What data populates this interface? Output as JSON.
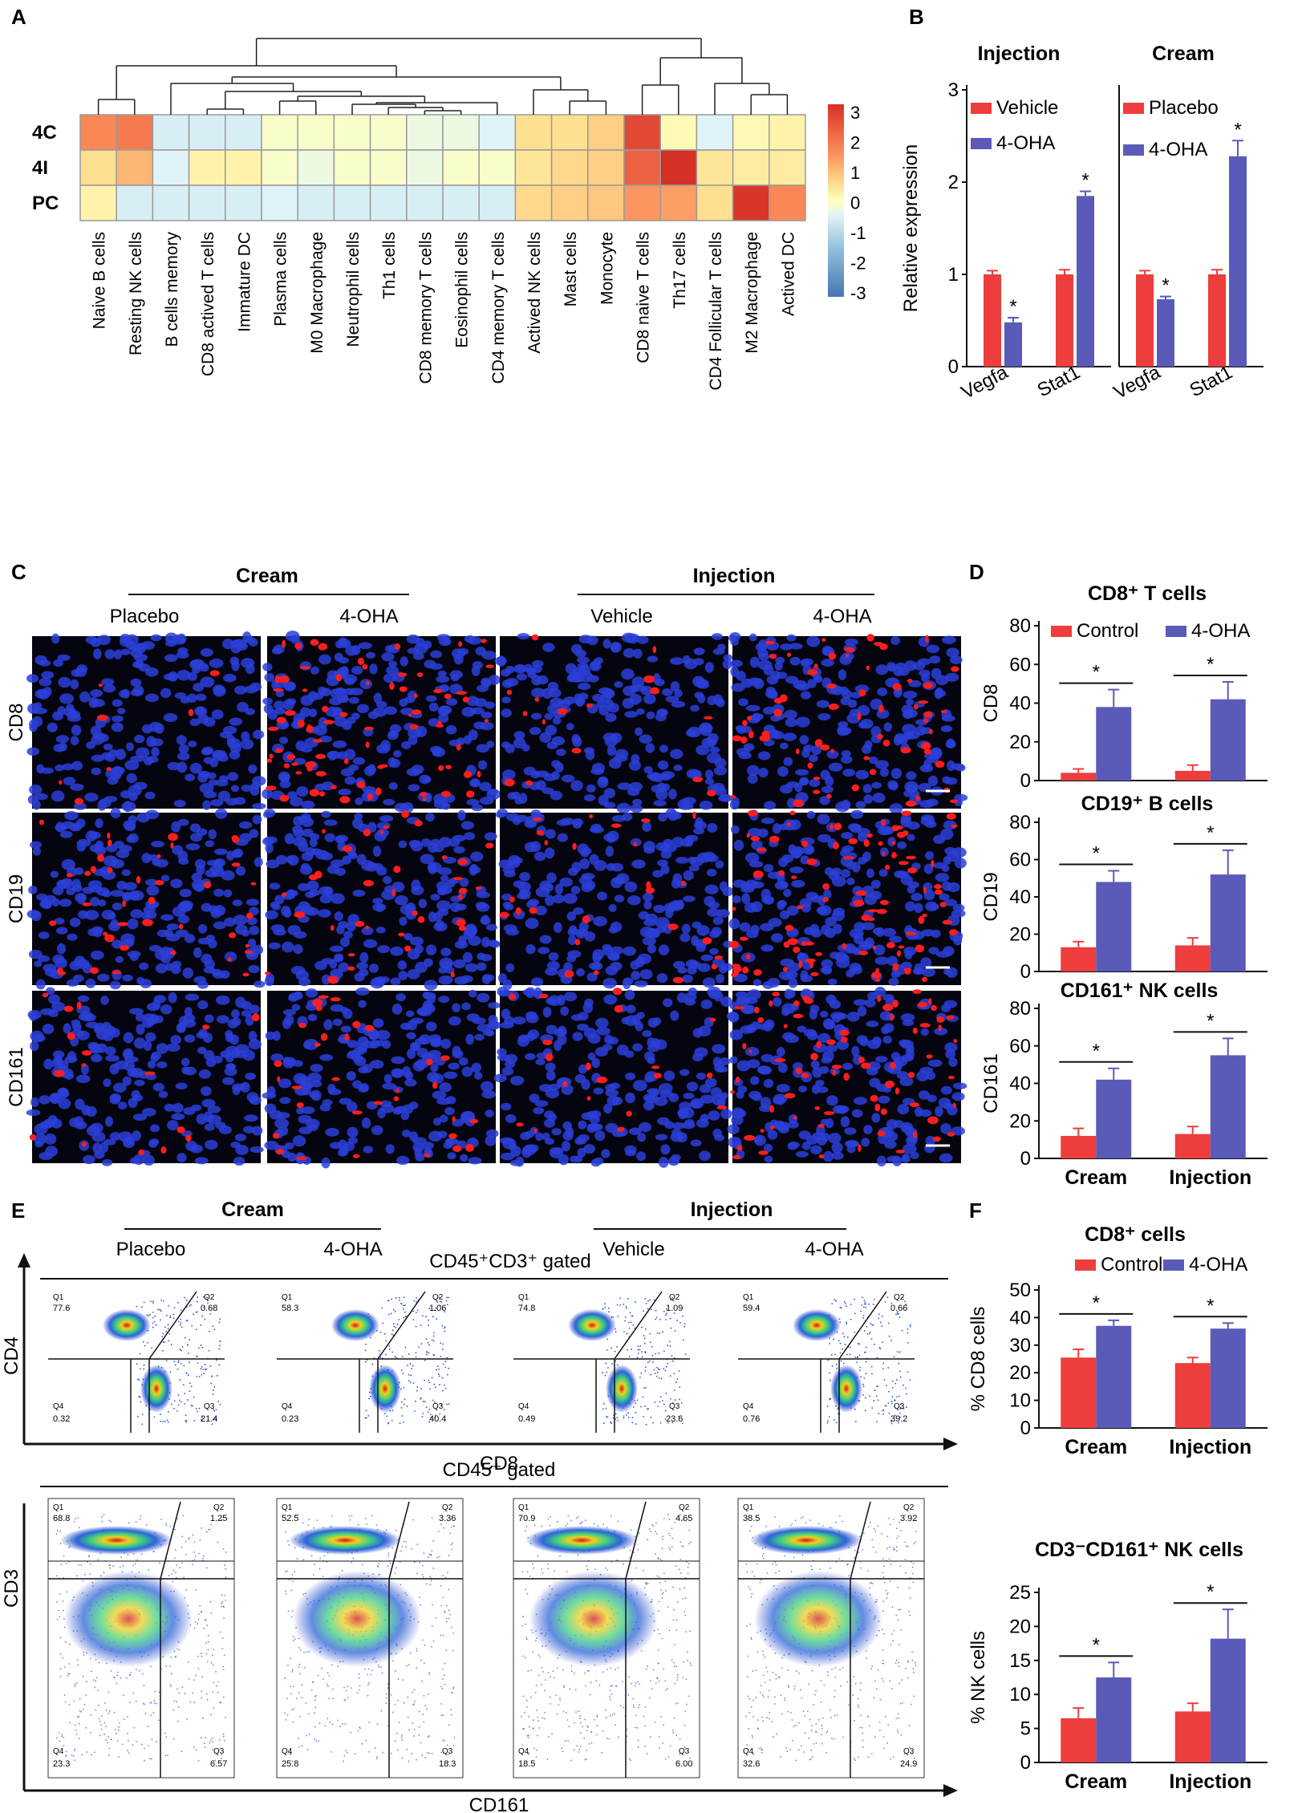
{
  "panels": {
    "a": "A",
    "b": "B",
    "c": "C",
    "d": "D",
    "e": "E",
    "f": "F"
  },
  "colors": {
    "red": "#ee3d3d",
    "blue": "#5a5bb8",
    "micro_bg": "#050510",
    "nuclei": "#2b3fd8",
    "stain": "#ff1e1e"
  },
  "heatmap": {
    "rows": [
      "4C",
      "4I",
      "PC"
    ],
    "columns": [
      "Naive B cells",
      "Resting NK cells",
      "B cells memory",
      "CD8 actived T cells",
      "Immature DC",
      "Plasma cells",
      "M0 Macrophage",
      "Neutrophil cells",
      "Th1 cells",
      "CD8 memory T cells",
      "Eosinophil cells",
      "CD4 memory T cells",
      "Actived NK cells",
      "Mast cells",
      "Monocyte",
      "CD8 naive T cells",
      "Th17 cells",
      "CD4 Follicular T cells",
      "M2 Macrophage",
      "Actived DC"
    ],
    "values": [
      [
        1.6,
        1.8,
        -0.6,
        -0.6,
        -0.6,
        -0.1,
        -0.1,
        -0.1,
        -0.1,
        -0.3,
        -0.3,
        -0.5,
        0.5,
        0.5,
        0.7,
        2.6,
        0.1,
        -0.5,
        0.1,
        0.2
      ],
      [
        0.5,
        1.0,
        -0.5,
        0.2,
        0.2,
        -0.1,
        -0.3,
        -0.1,
        -0.1,
        -0.3,
        -0.1,
        -0.1,
        0.4,
        0.6,
        0.7,
        2.2,
        3.4,
        0.4,
        0.3,
        0.3
      ],
      [
        0.2,
        -0.6,
        -0.6,
        -0.6,
        -0.6,
        -0.5,
        -0.6,
        -0.6,
        -0.6,
        -0.6,
        -0.6,
        -0.6,
        0.6,
        0.7,
        0.8,
        1.4,
        1.3,
        0.5,
        2.9,
        1.6
      ]
    ],
    "scale_ticks": [
      "3",
      "2",
      "1",
      "0",
      "-1",
      "-2",
      "-3"
    ]
  },
  "chart_data": [
    {
      "id": "B-injection",
      "type": "bar",
      "title": "Injection",
      "ylabel": "Relative expression",
      "ylim": [
        0,
        3
      ],
      "yticks": [
        "0",
        "1",
        "2",
        "3"
      ],
      "categories": [
        "Vegfa",
        "Stat1"
      ],
      "series": [
        {
          "name": "Vehicle",
          "values": [
            1.0,
            1.0
          ],
          "errors": [
            0.04,
            0.05
          ]
        },
        {
          "name": "4-OHA",
          "values": [
            0.48,
            1.85
          ],
          "errors": [
            0.05,
            0.05
          ]
        }
      ],
      "significance": [
        "*",
        "*"
      ]
    },
    {
      "id": "B-cream",
      "type": "bar",
      "title": "Cream",
      "ylabel": "",
      "ylim": [
        0,
        3
      ],
      "categories": [
        "Vegfa",
        "Stat1"
      ],
      "series": [
        {
          "name": "Placebo",
          "values": [
            1.0,
            1.0
          ],
          "errors": [
            0.04,
            0.05
          ]
        },
        {
          "name": "4-OHA",
          "values": [
            0.73,
            2.28
          ],
          "errors": [
            0.03,
            0.17
          ]
        }
      ],
      "significance": [
        "*",
        "*"
      ]
    },
    {
      "id": "D-cd8",
      "type": "bar",
      "title": "CD8⁺ T cells",
      "ylabel": "CD8",
      "ylim": [
        0,
        80
      ],
      "yticks": [
        "0",
        "20",
        "40",
        "60",
        "80"
      ],
      "categories": [
        "Cream",
        "Injection"
      ],
      "series": [
        {
          "name": "Control",
          "values": [
            4,
            5
          ],
          "errors": [
            2,
            3
          ]
        },
        {
          "name": "4-OHA",
          "values": [
            38,
            42
          ],
          "errors": [
            9,
            9
          ]
        }
      ],
      "significance": [
        "*",
        "*"
      ]
    },
    {
      "id": "D-cd19",
      "type": "bar",
      "title": "CD19⁺ B cells",
      "ylabel": "CD19",
      "ylim": [
        0,
        80
      ],
      "yticks": [
        "0",
        "20",
        "40",
        "60",
        "80"
      ],
      "categories": [
        "Cream",
        "Injection"
      ],
      "series": [
        {
          "name": "Control",
          "values": [
            13,
            14
          ],
          "errors": [
            3,
            4
          ]
        },
        {
          "name": "4-OHA",
          "values": [
            48,
            52
          ],
          "errors": [
            6,
            13
          ]
        }
      ],
      "significance": [
        "*",
        "*"
      ]
    },
    {
      "id": "D-cd161",
      "type": "bar",
      "title": "CD161⁺ NK cells",
      "ylabel": "CD161",
      "ylim": [
        0,
        80
      ],
      "yticks": [
        "0",
        "20",
        "40",
        "60",
        "80"
      ],
      "categories": [
        "Cream",
        "Injection"
      ],
      "xlabels": [
        "Cream",
        "Injection"
      ],
      "series": [
        {
          "name": "Control",
          "values": [
            12,
            13
          ],
          "errors": [
            4,
            4
          ]
        },
        {
          "name": "4-OHA",
          "values": [
            42,
            55
          ],
          "errors": [
            6,
            9
          ]
        }
      ],
      "significance": [
        "*",
        "*"
      ]
    },
    {
      "id": "F-cd8",
      "type": "bar",
      "title": "CD8⁺  cells",
      "ylabel": "% CD8 cells",
      "ylim": [
        0,
        50
      ],
      "yticks": [
        "0",
        "10",
        "20",
        "30",
        "40",
        "50"
      ],
      "categories": [
        "Cream",
        "Injection"
      ],
      "xlabels": [
        "Cream",
        "Injection"
      ],
      "series": [
        {
          "name": "Control",
          "values": [
            25.5,
            23.5
          ],
          "errors": [
            3,
            2
          ]
        },
        {
          "name": "4-OHA",
          "values": [
            37,
            36
          ],
          "errors": [
            2,
            2
          ]
        }
      ],
      "significance": [
        "*",
        "*"
      ]
    },
    {
      "id": "F-nk",
      "type": "bar",
      "title": "CD3⁻CD161⁺ NK cells",
      "ylabel": "% NK cells",
      "ylim": [
        0,
        25
      ],
      "yticks": [
        "0",
        "5",
        "10",
        "15",
        "20",
        "25"
      ],
      "categories": [
        "Cream",
        "Injection"
      ],
      "xlabels": [
        "Cream",
        "Injection"
      ],
      "series": [
        {
          "name": "Control",
          "values": [
            6.5,
            7.5
          ],
          "errors": [
            1.5,
            1.2
          ]
        },
        {
          "name": "4-OHA",
          "values": [
            12.5,
            18.2
          ],
          "errors": [
            2.2,
            4.3
          ]
        }
      ],
      "significance": [
        "*",
        "*"
      ]
    }
  ],
  "micrographs": {
    "header_cream": "Cream",
    "header_injection": "Injection",
    "cols": [
      "Placebo",
      "4-OHA",
      "Vehicle",
      "4-OHA"
    ],
    "rows": [
      "CD8",
      "CD19",
      "CD161"
    ],
    "stain_density": [
      [
        0.05,
        0.55,
        0.12,
        0.45
      ],
      [
        0.3,
        0.25,
        0.18,
        0.7
      ],
      [
        0.12,
        0.28,
        0.14,
        0.55
      ]
    ]
  },
  "flow": {
    "header_cream": "Cream",
    "header_injection": "Injection",
    "cols": [
      "Placebo",
      "4-OHA",
      "Vehicle",
      "4-OHA"
    ],
    "gate_top": "CD45⁺CD3⁺ gated",
    "gate_bottom": "CD45⁺ gated",
    "top_y": "CD4",
    "top_x": "CD8",
    "bottom_y": "CD3",
    "bottom_x": "CD161",
    "top_quadrants": [
      {
        "q1": "77.6",
        "q2": "0.68",
        "q3": "21.4",
        "q4": "0.32"
      },
      {
        "q1": "58.3",
        "q2": "1.06",
        "q3": "40.4",
        "q4": "0.23"
      },
      {
        "q1": "74.8",
        "q2": "1.09",
        "q3": "23.6",
        "q4": "0.49"
      },
      {
        "q1": "59.4",
        "q2": "0.66",
        "q3": "39.2",
        "q4": "0.76"
      }
    ],
    "bottom_quadrants": [
      {
        "q1": "68.8",
        "q2": "1.25",
        "q3": "6.57",
        "q4": "23.3"
      },
      {
        "q1": "52.5",
        "q2": "3.36",
        "q3": "18.3",
        "q4": "25.8"
      },
      {
        "q1": "70.9",
        "q2": "4.65",
        "q3": "6.00",
        "q4": "18.5"
      },
      {
        "q1": "38.5",
        "q2": "3.92",
        "q3": "24.9",
        "q4": "32.6"
      }
    ],
    "qlabels": {
      "q1": "Q1",
      "q2": "Q2",
      "q3": "Q3",
      "q4": "Q4"
    }
  }
}
